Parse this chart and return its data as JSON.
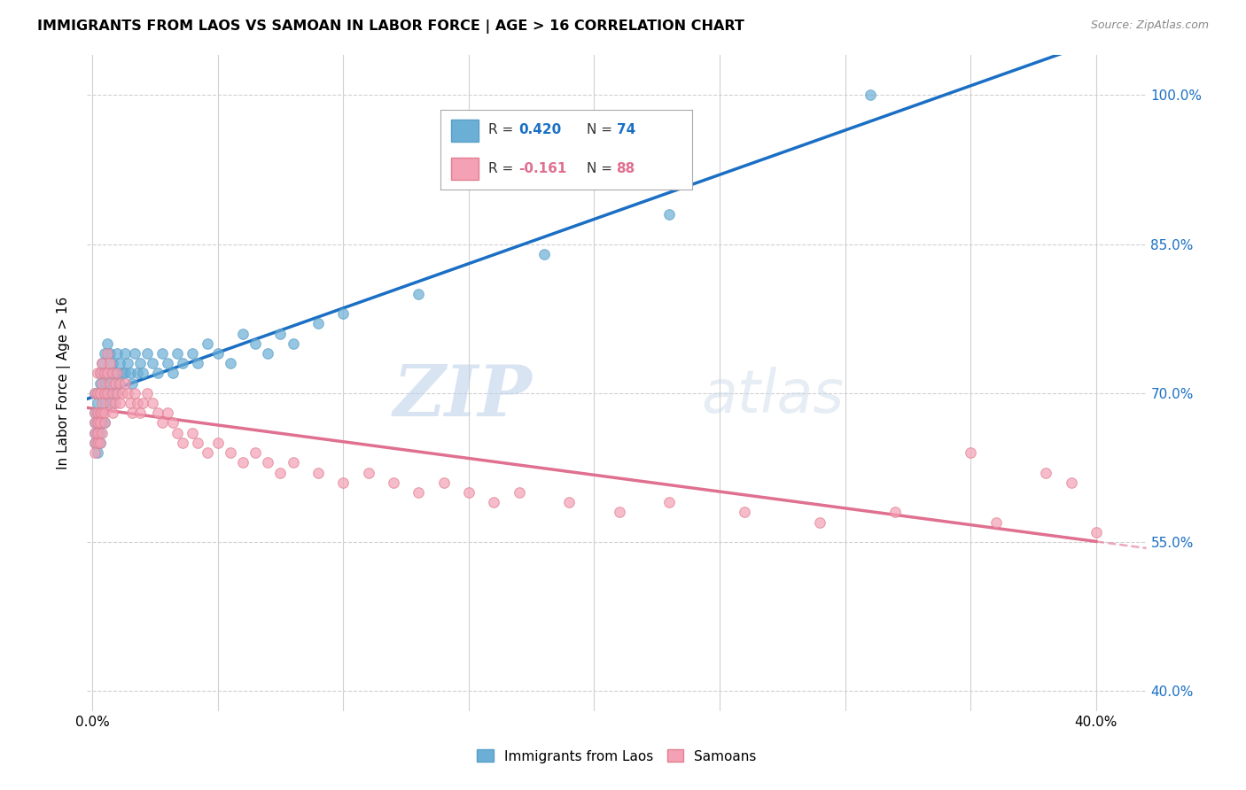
{
  "title": "IMMIGRANTS FROM LAOS VS SAMOAN IN LABOR FORCE | AGE > 16 CORRELATION CHART",
  "source": "Source: ZipAtlas.com",
  "ylabel": "In Labor Force | Age > 16",
  "x_min": -0.002,
  "x_max": 0.42,
  "y_min": 0.38,
  "y_max": 1.04,
  "y_ticks": [
    0.4,
    0.55,
    0.7,
    0.85,
    1.0
  ],
  "y_ticklabels": [
    "40.0%",
    "55.0%",
    "70.0%",
    "85.0%",
    "100.0%"
  ],
  "x_ticks": [
    0.0,
    0.05,
    0.1,
    0.15,
    0.2,
    0.25,
    0.3,
    0.35,
    0.4
  ],
  "x_ticklabels": [
    "0.0%",
    "",
    "",
    "",
    "",
    "",
    "",
    "",
    "40.0%"
  ],
  "legend_r1_label": "R = ",
  "legend_r1_val": "0.420",
  "legend_n1_label": "N = ",
  "legend_n1_val": "74",
  "legend_r2_label": "R = ",
  "legend_r2_val": "-0.161",
  "legend_n2_label": "N = ",
  "legend_n2_val": "88",
  "color_laos": "#6baed6",
  "color_laos_edge": "#5a9fc7",
  "color_samoan": "#f4a0b5",
  "color_samoan_edge": "#e08090",
  "color_line_laos": "#1a6fc4",
  "color_line_samoan": "#e07090",
  "background_color": "#ffffff",
  "grid_color": "#d0d0d0",
  "watermark_zip": "ZIP",
  "watermark_atlas": "atlas",
  "laos_x": [
    0.001,
    0.001,
    0.001,
    0.001,
    0.001,
    0.002,
    0.002,
    0.002,
    0.002,
    0.002,
    0.002,
    0.003,
    0.003,
    0.003,
    0.003,
    0.003,
    0.004,
    0.004,
    0.004,
    0.004,
    0.004,
    0.005,
    0.005,
    0.005,
    0.005,
    0.006,
    0.006,
    0.006,
    0.007,
    0.007,
    0.007,
    0.008,
    0.008,
    0.008,
    0.009,
    0.009,
    0.01,
    0.01,
    0.011,
    0.011,
    0.012,
    0.013,
    0.013,
    0.014,
    0.015,
    0.016,
    0.017,
    0.018,
    0.019,
    0.02,
    0.022,
    0.024,
    0.026,
    0.028,
    0.03,
    0.032,
    0.034,
    0.036,
    0.04,
    0.042,
    0.046,
    0.05,
    0.055,
    0.06,
    0.065,
    0.07,
    0.075,
    0.08,
    0.09,
    0.1,
    0.13,
    0.18,
    0.23,
    0.31
  ],
  "laos_y": [
    0.68,
    0.7,
    0.66,
    0.65,
    0.67,
    0.69,
    0.68,
    0.67,
    0.66,
    0.65,
    0.64,
    0.72,
    0.71,
    0.68,
    0.66,
    0.65,
    0.7,
    0.73,
    0.72,
    0.68,
    0.67,
    0.74,
    0.71,
    0.69,
    0.67,
    0.75,
    0.72,
    0.7,
    0.74,
    0.72,
    0.7,
    0.73,
    0.71,
    0.69,
    0.72,
    0.7,
    0.74,
    0.72,
    0.73,
    0.71,
    0.72,
    0.74,
    0.72,
    0.73,
    0.72,
    0.71,
    0.74,
    0.72,
    0.73,
    0.72,
    0.74,
    0.73,
    0.72,
    0.74,
    0.73,
    0.72,
    0.74,
    0.73,
    0.74,
    0.73,
    0.75,
    0.74,
    0.73,
    0.76,
    0.75,
    0.74,
    0.76,
    0.75,
    0.77,
    0.78,
    0.8,
    0.84,
    0.88,
    1.0
  ],
  "samoan_x": [
    0.001,
    0.001,
    0.001,
    0.001,
    0.001,
    0.001,
    0.002,
    0.002,
    0.002,
    0.002,
    0.002,
    0.002,
    0.003,
    0.003,
    0.003,
    0.003,
    0.003,
    0.004,
    0.004,
    0.004,
    0.004,
    0.004,
    0.005,
    0.005,
    0.005,
    0.005,
    0.006,
    0.006,
    0.006,
    0.007,
    0.007,
    0.007,
    0.008,
    0.008,
    0.008,
    0.009,
    0.009,
    0.01,
    0.01,
    0.011,
    0.011,
    0.012,
    0.013,
    0.014,
    0.015,
    0.016,
    0.017,
    0.018,
    0.019,
    0.02,
    0.022,
    0.024,
    0.026,
    0.028,
    0.03,
    0.032,
    0.034,
    0.036,
    0.04,
    0.042,
    0.046,
    0.05,
    0.055,
    0.06,
    0.065,
    0.07,
    0.075,
    0.08,
    0.09,
    0.1,
    0.11,
    0.12,
    0.13,
    0.14,
    0.15,
    0.16,
    0.17,
    0.19,
    0.21,
    0.23,
    0.26,
    0.29,
    0.32,
    0.36,
    0.4,
    0.35,
    0.38,
    0.39
  ],
  "samoan_y": [
    0.7,
    0.68,
    0.67,
    0.66,
    0.65,
    0.64,
    0.72,
    0.7,
    0.68,
    0.67,
    0.66,
    0.65,
    0.72,
    0.7,
    0.68,
    0.67,
    0.65,
    0.73,
    0.71,
    0.69,
    0.68,
    0.66,
    0.72,
    0.7,
    0.68,
    0.67,
    0.74,
    0.72,
    0.7,
    0.73,
    0.71,
    0.69,
    0.72,
    0.7,
    0.68,
    0.71,
    0.69,
    0.72,
    0.7,
    0.71,
    0.69,
    0.7,
    0.71,
    0.7,
    0.69,
    0.68,
    0.7,
    0.69,
    0.68,
    0.69,
    0.7,
    0.69,
    0.68,
    0.67,
    0.68,
    0.67,
    0.66,
    0.65,
    0.66,
    0.65,
    0.64,
    0.65,
    0.64,
    0.63,
    0.64,
    0.63,
    0.62,
    0.63,
    0.62,
    0.61,
    0.62,
    0.61,
    0.6,
    0.61,
    0.6,
    0.59,
    0.6,
    0.59,
    0.58,
    0.59,
    0.58,
    0.57,
    0.58,
    0.57,
    0.56,
    0.64,
    0.62,
    0.61
  ]
}
